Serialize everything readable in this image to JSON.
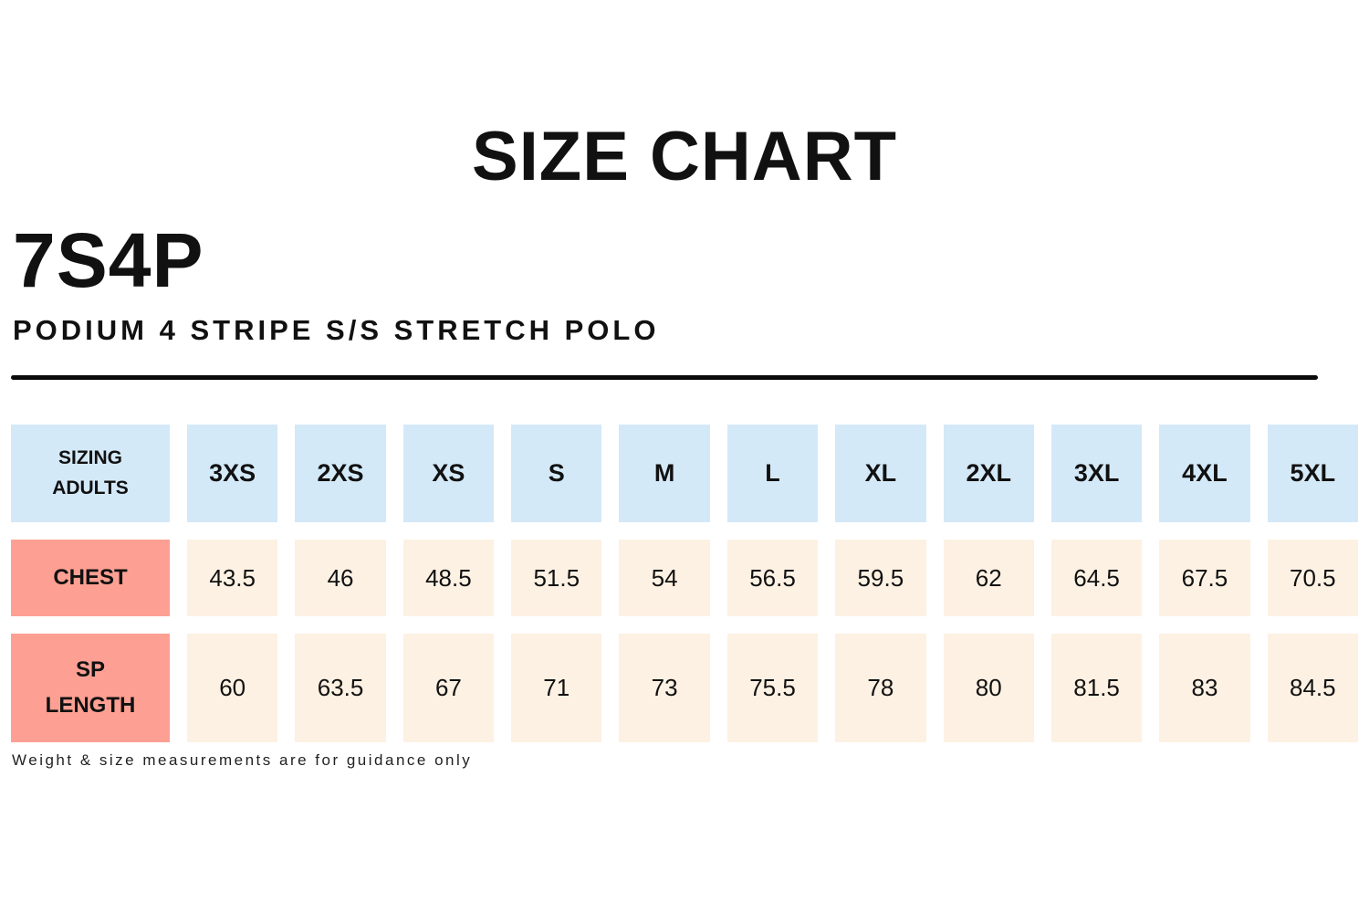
{
  "page": {
    "title": "SIZE CHART",
    "product_code": "7S4P",
    "product_name": "PODIUM 4 STRIPE S/S STRETCH POLO",
    "footnote": "Weight & size measurements are for guidance only"
  },
  "colors": {
    "header_bg": "#d4e9f8",
    "label_bg": "#fda093",
    "value_bg": "#fdf1e3",
    "text": "#111111"
  },
  "chart_data": {
    "type": "table",
    "header_label": "SIZING ADULTS",
    "sizes": [
      "3XS",
      "2XS",
      "XS",
      "S",
      "M",
      "L",
      "XL",
      "2XL",
      "3XL",
      "4XL",
      "5XL"
    ],
    "rows": [
      {
        "label": "CHEST",
        "values": [
          "43.5",
          "46",
          "48.5",
          "51.5",
          "54",
          "56.5",
          "59.5",
          "62",
          "64.5",
          "67.5",
          "70.5"
        ]
      },
      {
        "label": "SP LENGTH",
        "values": [
          "60",
          "63.5",
          "67",
          "71",
          "73",
          "75.5",
          "78",
          "80",
          "81.5",
          "83",
          "84.5"
        ]
      }
    ]
  }
}
